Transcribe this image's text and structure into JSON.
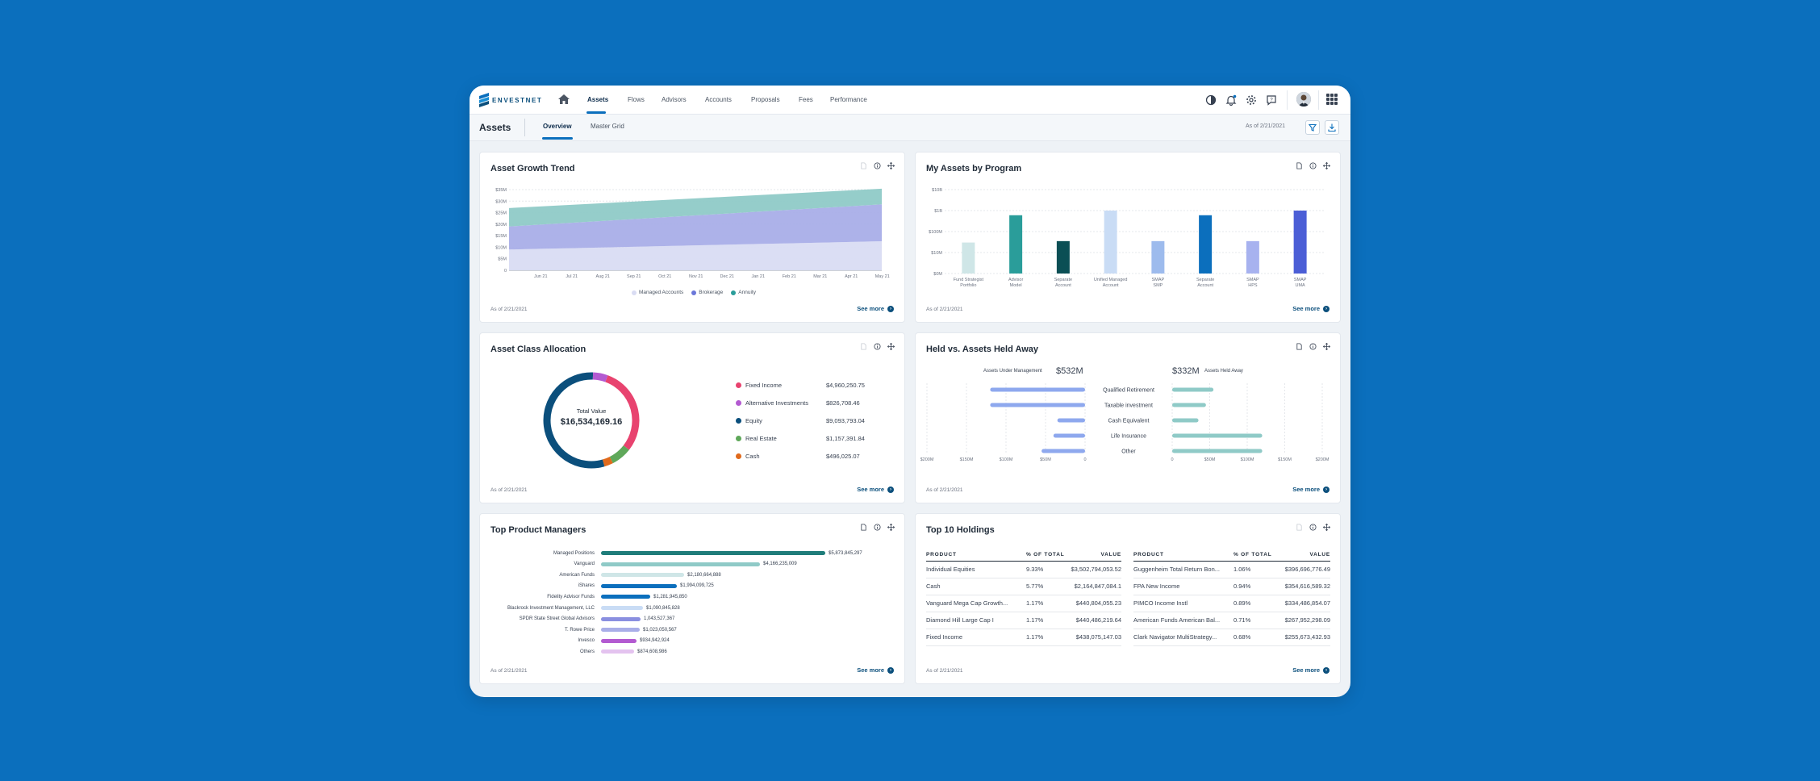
{
  "brand": {
    "name": "ENVESTNET"
  },
  "nav": {
    "items": [
      "Assets",
      "Flows",
      "Advisors",
      "Accounts",
      "Proposals",
      "Fees",
      "Performance"
    ],
    "active": "Assets"
  },
  "page": {
    "title": "Assets",
    "tabs": [
      "Overview",
      "Master Grid"
    ],
    "active_tab": "Overview",
    "as_of": "As of 2/21/2021"
  },
  "colors": {
    "brand_blue": "#0b6fbd",
    "dark_blue": "#0b4f7c",
    "teal": "#2a9d9a"
  },
  "cards": {
    "growth": {
      "title": "Asset Growth Trend",
      "as_of": "As of 2/21/2021",
      "see_more": "See more"
    },
    "program": {
      "title": "My Assets by Program",
      "as_of": "As of 2/21/2021",
      "see_more": "See more"
    },
    "allocation": {
      "title": "Asset Class Allocation",
      "as_of": "As of 2/21/2021",
      "see_more": "See more",
      "center_label": "Total Value",
      "center_value": "$16,534,169.16"
    },
    "heldaway": {
      "title": "Held vs. Assets Held Away",
      "as_of": "As of 2/21/2021",
      "see_more": "See more",
      "aum_value": "$532M",
      "aum_label": "Assets Under Management",
      "away_value": "$332M",
      "away_label": "Assets Held Away"
    },
    "managers": {
      "title": "Top Product Managers",
      "as_of": "As of 2/21/2021",
      "see_more": "See more"
    },
    "holdings": {
      "title": "Top 10 Holdings",
      "as_of": "As of 2/21/2021",
      "see_more": "See more",
      "headers": [
        "PRODUCT",
        "% OF TOTAL",
        "VALUE"
      ],
      "left": [
        [
          "Individual Equities",
          "9.33%",
          "$3,502,794,053.52"
        ],
        [
          "Cash",
          "5.77%",
          "$2,164,847,084.1"
        ],
        [
          "Vanguard Mega Cap Growth...",
          "1.17%",
          "$440,804,055.23"
        ],
        [
          "Diamond Hill Large Cap I",
          "1.17%",
          "$440,486,219.64"
        ],
        [
          "Fixed Income",
          "1.17%",
          "$438,075,147.03"
        ]
      ],
      "right": [
        [
          "Guggenheim Total Return Bon...",
          "1.06%",
          "$396,696,776.49"
        ],
        [
          "FPA New Income",
          "0.94%",
          "$354,616,589.32"
        ],
        [
          "PIMCO Income Instl",
          "0.89%",
          "$334,486,854.07"
        ],
        [
          "American Funds American Bal...",
          "0.71%",
          "$267,952,298.09"
        ],
        [
          "Clark Navigator MultiStrategy...",
          "0.68%",
          "$255,673,432.93"
        ]
      ]
    }
  },
  "chart_data": [
    {
      "type": "area",
      "title": "Asset Growth Trend",
      "x": [
        "May 21",
        "Jun 21",
        "Jul 21",
        "Aug 21",
        "Sep 21",
        "Oct 21",
        "Nov 21",
        "Dec 21",
        "Jan 21",
        "Feb 21",
        "Mar 21",
        "Apr 21",
        "May 21"
      ],
      "yticks": [
        "$35M",
        "$30M",
        "$25M",
        "$20M",
        "$15M",
        "$10M",
        "$5M",
        "0"
      ],
      "ylim": [
        0,
        35
      ],
      "series": [
        {
          "name": "Managed Accounts",
          "color": "#d9dcf3",
          "values": [
            9,
            9.3,
            9.6,
            9.9,
            10.2,
            10.5,
            10.8,
            11.1,
            11.4,
            11.7,
            12,
            12.3,
            12.6
          ]
        },
        {
          "name": "Brokerage",
          "color": "#a9aee8",
          "values": [
            10,
            10.5,
            11,
            11.5,
            12,
            12.5,
            13,
            13.5,
            14,
            14.5,
            15,
            15.5,
            16
          ]
        },
        {
          "name": "Annuity",
          "color": "#8fcac7",
          "values": [
            8,
            7.9,
            7.8,
            7.7,
            7.6,
            7.5,
            7.4,
            7.3,
            7.2,
            7.1,
            7,
            6.9,
            6.8
          ]
        }
      ]
    },
    {
      "type": "bar",
      "title": "My Assets by Program",
      "scale": "log",
      "yticks": [
        "$10B",
        "$1B",
        "$100M",
        "$10M",
        "$0M"
      ],
      "categories": [
        "Fund Strategist Portfolio",
        "Advisor Model",
        "Separate Account",
        "Unified Managed Account",
        "SMAP SMP",
        "Separate Account",
        "SMAP HPS",
        "SMAP UMA"
      ],
      "values": [
        30,
        600,
        35,
        1000,
        35,
        600,
        35,
        1000
      ],
      "colors": [
        "#cfe6e7",
        "#2a9d9a",
        "#0b4f55",
        "#c9dcf5",
        "#9dbbed",
        "#0b6fbd",
        "#a7b2ef",
        "#4b5ed6"
      ]
    },
    {
      "type": "pie",
      "title": "Asset Class Allocation",
      "categories": [
        "Fixed Income",
        "Alternative Investments",
        "Equity",
        "Real Estate",
        "Cash"
      ],
      "labels": [
        "$4,960,250.75",
        "$826,708.46",
        "$9,093,793.04",
        "$1,157,391.84",
        "$496,025.07"
      ],
      "values": [
        4960250.75,
        826708.46,
        9093793.04,
        1157391.84,
        496025.07
      ],
      "colors": [
        "#e8436f",
        "#b35ad1",
        "#0b4f7c",
        "#5fa85a",
        "#e06a1c"
      ]
    },
    {
      "type": "bar",
      "title": "Held vs. Assets Held Away",
      "categories": [
        "Qualified Retirement",
        "Taxable investment",
        "Cash Equivalent",
        "Life Insurance",
        "Other"
      ],
      "series": [
        {
          "name": "Assets Under Management",
          "values": [
            120,
            120,
            35,
            40,
            55
          ]
        },
        {
          "name": "Assets Held Away",
          "values": [
            55,
            45,
            35,
            120,
            120
          ]
        }
      ],
      "left_ticks": [
        "$200M",
        "$150M",
        "$100M",
        "$50M",
        "0"
      ],
      "right_ticks": [
        "0",
        "$50M",
        "$100M",
        "$150M",
        "$200M"
      ]
    },
    {
      "type": "bar",
      "title": "Top Product Managers",
      "categories": [
        "Managed Positions",
        "Vanguard",
        "American Funds",
        "iShares",
        "Fidelity Advisor Funds",
        "Blackrock Investment Management, LLC",
        "SPDR State Street Global Advisors",
        "T. Rowe Price",
        "Invesco",
        "Others"
      ],
      "labels": [
        "$5,873,845,297",
        "$4,166,235,009",
        "$2,180,664,888",
        "$1,994,099,725",
        "$1,281,945,850",
        "$1,090,845,828",
        "1,043,527,367",
        "$1,023,050,567",
        "$934,942,924",
        "$874,608,986"
      ],
      "values": [
        5873845297,
        4166235009,
        2180664888,
        1994099725,
        1281945850,
        1090845828,
        1043527367,
        1023050567,
        934942924,
        874608986
      ],
      "colors": [
        "#1f7d7a",
        "#8fcac7",
        "#cfe6e7",
        "#0b6fbd",
        "#0b6fbd",
        "#c9dcf5",
        "#8a8fe0",
        "#a9aee8",
        "#b35ad1",
        "#e4c3ef"
      ]
    }
  ]
}
